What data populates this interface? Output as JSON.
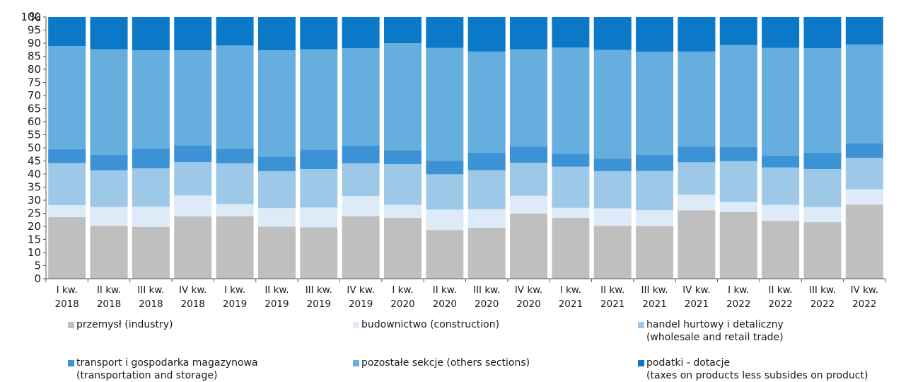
{
  "chart_data": {
    "type": "bar",
    "stacked": true,
    "title": "",
    "ylabel": "%",
    "ylim": [
      0,
      100
    ],
    "yticks": [
      0,
      5,
      10,
      15,
      20,
      25,
      30,
      35,
      40,
      45,
      50,
      55,
      60,
      65,
      70,
      75,
      80,
      85,
      90,
      95,
      100
    ],
    "grid": false,
    "legend_position": "bottom",
    "categories": [
      [
        "I kw.",
        "2018"
      ],
      [
        "II kw.",
        "2018"
      ],
      [
        "III kw.",
        "2018"
      ],
      [
        "IV kw.",
        "2018"
      ],
      [
        "I kw.",
        "2019"
      ],
      [
        "II kw.",
        "2019"
      ],
      [
        "III kw.",
        "2019"
      ],
      [
        "IV kw.",
        "2019"
      ],
      [
        "I kw.",
        "2020"
      ],
      [
        "II kw.",
        "2020"
      ],
      [
        "III kw.",
        "2020"
      ],
      [
        "IV kw.",
        "2020"
      ],
      [
        "I kw.",
        "2021"
      ],
      [
        "II kw.",
        "2021"
      ],
      [
        "III kw.",
        "2021"
      ],
      [
        "IV kw.",
        "2021"
      ],
      [
        "I kw.",
        "2022"
      ],
      [
        "II kw.",
        "2022"
      ],
      [
        "III kw.",
        "2022"
      ],
      [
        "IV kw.",
        "2022"
      ]
    ],
    "series": [
      {
        "name": "przemysł (industry)",
        "color": "#bfbfbf",
        "values": [
          23.5,
          20.2,
          19.8,
          23.8,
          23.9,
          19.9,
          19.6,
          23.9,
          23.3,
          18.6,
          19.5,
          24.9,
          23.3,
          20.2,
          20.1,
          26.1,
          25.5,
          22.1,
          21.6,
          28.3
        ]
      },
      {
        "name": "budownictwo (construction)",
        "color": "#ddeaf7",
        "values": [
          4.6,
          7.2,
          7.7,
          8.0,
          4.6,
          7.1,
          7.6,
          7.7,
          4.9,
          7.8,
          7.1,
          6.8,
          3.8,
          6.7,
          6.1,
          6.0,
          3.8,
          6.1,
          5.8,
          5.9
        ]
      },
      {
        "name": "handel hurtowy i detaliczny\n(wholesale and retail trade)",
        "color": "#9dc8e8",
        "values": [
          16.1,
          14.0,
          14.7,
          12.8,
          15.6,
          14.1,
          14.7,
          12.5,
          15.6,
          13.5,
          14.9,
          12.6,
          15.7,
          14.2,
          15.0,
          12.4,
          15.6,
          14.3,
          14.5,
          12.0
        ]
      },
      {
        "name": "transport i gospodarka magazynowa\n(transportation and storage)",
        "color": "#3b93d6",
        "values": [
          5.3,
          6.0,
          7.5,
          6.4,
          5.5,
          5.5,
          7.5,
          6.7,
          5.3,
          5.2,
          6.6,
          6.1,
          5.0,
          4.8,
          6.2,
          5.9,
          5.4,
          4.5,
          6.3,
          5.6
        ]
      },
      {
        "name": "pozostałe sekcje (others sections)",
        "color": "#66aede",
        "values": [
          39.4,
          40.3,
          37.6,
          36.3,
          39.5,
          40.7,
          38.3,
          37.3,
          40.9,
          43.1,
          38.7,
          37.3,
          40.5,
          41.5,
          39.3,
          36.4,
          39.0,
          41.2,
          39.9,
          37.7
        ]
      },
      {
        "name": "podatki - dotacje\n(taxes on products less subsides on product)",
        "color": "#0b78c8",
        "values": [
          11.1,
          12.3,
          12.7,
          12.7,
          10.9,
          12.7,
          12.3,
          11.9,
          10.0,
          11.8,
          13.2,
          12.3,
          11.7,
          12.6,
          13.3,
          13.2,
          10.7,
          11.8,
          11.9,
          10.5
        ]
      }
    ]
  }
}
